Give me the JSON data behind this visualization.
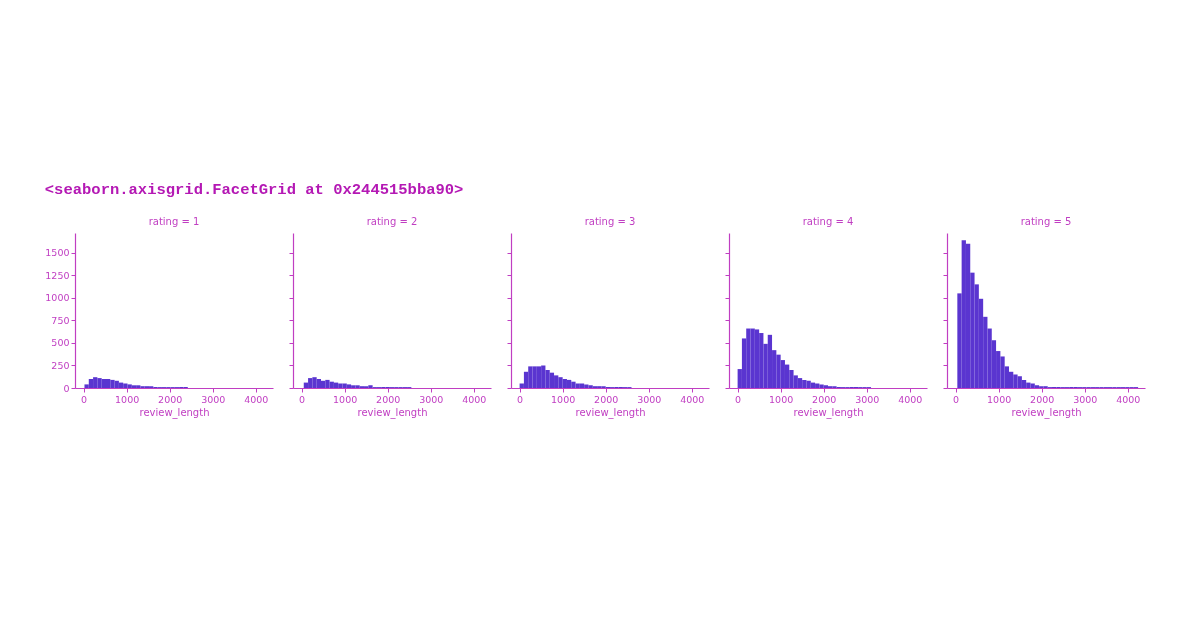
{
  "chart_data": [
    {
      "type": "histogram",
      "title": "rating = 1",
      "xlabel": "review_length",
      "color": "#5a35d0",
      "annotations": [
        "<seaborn.axisgrid.FacetGrid at 0x244515bba90>"
      ],
      "bins": [
        20,
        120,
        220,
        320,
        420,
        520,
        620,
        720,
        820,
        920,
        1020,
        1120,
        1220,
        1320,
        1420,
        1520,
        1620,
        1720,
        1820,
        1920,
        2020,
        2120,
        2220,
        2320,
        2420
      ],
      "values": [
        40,
        100,
        120,
        110,
        100,
        100,
        90,
        80,
        60,
        50,
        40,
        30,
        30,
        20,
        20,
        20,
        10,
        10,
        10,
        10,
        10,
        10,
        10,
        10
      ],
      "xlim": [
        -200,
        4400
      ],
      "xticks": [
        0,
        1000,
        2000,
        3000,
        4000
      ],
      "ylim": [
        0,
        1720
      ],
      "yticks": [
        0,
        250,
        500,
        750,
        1000,
        1250,
        1500
      ],
      "grid": false
    },
    {
      "type": "histogram",
      "title": "rating = 2",
      "xlabel": "review_length",
      "color": "#5a35d0",
      "bins": [
        50,
        150,
        250,
        350,
        450,
        550,
        650,
        750,
        850,
        950,
        1050,
        1150,
        1250,
        1350,
        1450,
        1550,
        1650,
        1750,
        1850,
        1950,
        2050,
        2150,
        2250,
        2350,
        2450,
        2550
      ],
      "values": [
        60,
        110,
        120,
        100,
        80,
        90,
        70,
        60,
        50,
        50,
        40,
        30,
        30,
        20,
        20,
        30,
        10,
        10,
        10,
        10,
        10,
        10,
        10,
        10,
        10
      ],
      "xlim": [
        -200,
        4400
      ],
      "xticks": [
        0,
        1000,
        2000,
        3000,
        4000
      ],
      "ylim": [
        0,
        1720
      ],
      "yticks": [
        0,
        250,
        500,
        750,
        1000,
        1250,
        1500
      ],
      "tick_labels": "x",
      "grid": false
    },
    {
      "type": "histogram",
      "title": "rating = 3",
      "xlabel": "review_length",
      "color": "#5a35d0",
      "bins": [
        0,
        100,
        200,
        300,
        400,
        500,
        600,
        700,
        800,
        900,
        1000,
        1100,
        1200,
        1300,
        1400,
        1500,
        1600,
        1700,
        1800,
        1900,
        2000,
        2100,
        2200,
        2300,
        2400,
        2500,
        2600
      ],
      "values": [
        50,
        180,
        240,
        240,
        240,
        250,
        200,
        170,
        140,
        120,
        100,
        90,
        70,
        50,
        50,
        40,
        30,
        20,
        20,
        20,
        10,
        10,
        10,
        10,
        10,
        10
      ],
      "xlim": [
        -200,
        4400
      ],
      "xticks": [
        0,
        1000,
        2000,
        3000,
        4000
      ],
      "ylim": [
        0,
        1720
      ],
      "yticks": [
        0,
        250,
        500,
        750,
        1000,
        1250,
        1500
      ],
      "tick_labels": "x",
      "grid": false
    },
    {
      "type": "histogram",
      "title": "rating = 4",
      "xlabel": "review_length",
      "color": "#5a35d0",
      "bins": [
        0,
        100,
        200,
        300,
        400,
        500,
        600,
        700,
        800,
        900,
        1000,
        1100,
        1200,
        1300,
        1400,
        1500,
        1600,
        1700,
        1800,
        1900,
        2000,
        2100,
        2200,
        2300,
        2400,
        2500,
        2600,
        2700,
        2800,
        2900,
        3000,
        3100
      ],
      "values": [
        210,
        550,
        660,
        660,
        650,
        610,
        490,
        590,
        420,
        370,
        310,
        260,
        200,
        140,
        110,
        90,
        80,
        60,
        50,
        40,
        30,
        20,
        20,
        10,
        10,
        10,
        10,
        10,
        10,
        10,
        10
      ],
      "xlim": [
        -200,
        4400
      ],
      "xticks": [
        0,
        1000,
        2000,
        3000,
        4000
      ],
      "ylim": [
        0,
        1720
      ],
      "yticks": [
        0,
        250,
        500,
        750,
        1000,
        1250,
        1500
      ],
      "tick_labels": "x",
      "grid": false
    },
    {
      "type": "histogram",
      "title": "rating = 5",
      "xlabel": "review_length",
      "color": "#5a35d0",
      "bins": [
        40,
        140,
        240,
        340,
        440,
        540,
        640,
        740,
        840,
        940,
        1040,
        1140,
        1240,
        1340,
        1440,
        1540,
        1640,
        1740,
        1840,
        1940,
        2040,
        2140,
        2240,
        2340,
        2440,
        2540,
        2640,
        2740,
        2840,
        2940,
        3040,
        3140,
        3240,
        3340,
        3440,
        3540,
        3640,
        3740,
        3840,
        3940,
        4040,
        4140,
        4240
      ],
      "values": [
        1050,
        1640,
        1600,
        1280,
        1150,
        990,
        790,
        660,
        530,
        410,
        350,
        240,
        180,
        150,
        130,
        90,
        60,
        50,
        30,
        20,
        20,
        10,
        10,
        10,
        10,
        10,
        10,
        10,
        10,
        10,
        10,
        10,
        10,
        10,
        10,
        10,
        10,
        10,
        10,
        10,
        10,
        10
      ],
      "xlim": [
        -200,
        4400
      ],
      "xticks": [
        0,
        1000,
        2000,
        3000,
        4000
      ],
      "ylim": [
        0,
        1720
      ],
      "yticks": [
        0,
        250,
        500,
        750,
        1000,
        1250,
        1500
      ],
      "tick_labels": "x",
      "grid": false
    }
  ]
}
